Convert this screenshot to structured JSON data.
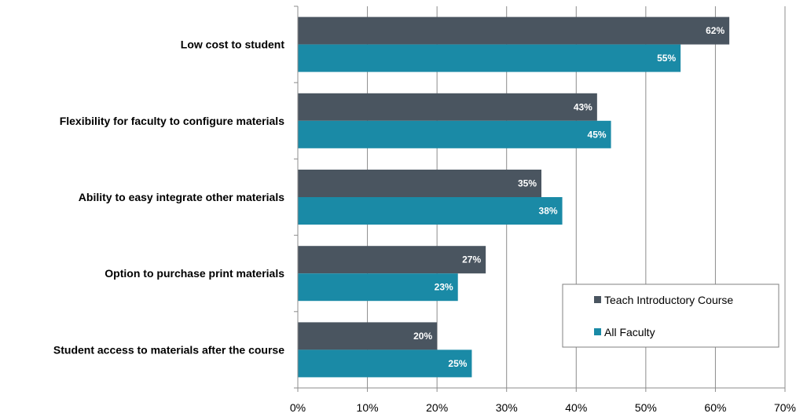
{
  "chart_data": {
    "type": "bar",
    "orientation": "horizontal",
    "categories": [
      "Low cost to student",
      "Flexibility for faculty to configure materials",
      "Ability to easy integrate other materials",
      "Option to purchase print materials",
      "Student access to materials after the course"
    ],
    "series": [
      {
        "name": "Teach Introductory Course",
        "color": "#4a5560",
        "values": [
          62,
          43,
          35,
          27,
          20
        ],
        "labels": [
          "62%",
          "43%",
          "35%",
          "27%",
          "20%"
        ]
      },
      {
        "name": "All Faculty",
        "color": "#1a8aa6",
        "values": [
          55,
          45,
          38,
          23,
          25
        ],
        "labels": [
          "55%",
          "45%",
          "38%",
          "23%",
          "25%"
        ]
      }
    ],
    "x_ticks": [
      "0%",
      "10%",
      "20%",
      "30%",
      "40%",
      "50%",
      "60%",
      "70%"
    ],
    "xlim": [
      0,
      70
    ],
    "grid": true,
    "legend_position": "bottom-right",
    "title": "",
    "xlabel": "",
    "ylabel": ""
  }
}
